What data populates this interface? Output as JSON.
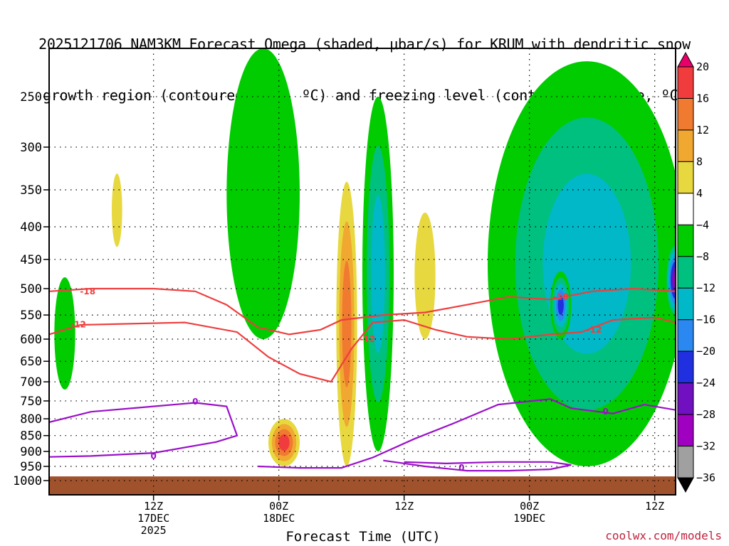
{
  "title_line1": "2025121706 NAM3KM Forecast Omega (shaded, μbar/s) for KRUM with dendritic snow",
  "title_line2": "growth region (contoured, red, ºC) and freezing level (contoured, purple, ºC)",
  "xlabel": "Forecast Time (UTC)",
  "credit": "coolwx.com/models",
  "chart_data": {
    "type": "heatmap",
    "y_axis": {
      "label": "",
      "unit": "hPa",
      "ticks": [
        250,
        300,
        350,
        400,
        450,
        500,
        550,
        600,
        650,
        700,
        750,
        800,
        850,
        900,
        950,
        1000
      ],
      "range": [
        210,
        1000
      ],
      "scale": "log-pressure",
      "grid": true
    },
    "x_axis": {
      "label": "Forecast Time (UTC)",
      "range_hours": [
        -10,
        50
      ],
      "ticks": [
        {
          "hour": 0,
          "lines": [
            "12Z",
            "17DEC",
            "2025"
          ]
        },
        {
          "hour": 12,
          "lines": [
            "00Z",
            "18DEC"
          ]
        },
        {
          "hour": 24,
          "lines": [
            "12Z"
          ]
        },
        {
          "hour": 36,
          "lines": [
            "00Z",
            "19DEC"
          ]
        },
        {
          "hour": 48,
          "lines": [
            "12Z"
          ]
        }
      ]
    },
    "colorbar": {
      "labels": [
        "20",
        "16",
        "12",
        "8",
        "4",
        "−4",
        "−8",
        "−12",
        "−16",
        "−20",
        "−24",
        "−28",
        "−32",
        "−36"
      ],
      "colors": [
        "#e8006a",
        "#f03c3c",
        "#f07a30",
        "#f0a830",
        "#e8d840",
        "#ffffff",
        "#00cc00",
        "#00c080",
        "#00b8c8",
        "#2a88f0",
        "#2030e0",
        "#7010c0",
        "#a000c0",
        "#a0a0a0",
        "#000000"
      ]
    },
    "contours": [
      {
        "label": "-18",
        "color": "#ee3e3e",
        "level_C": -18
      },
      {
        "label": "-12",
        "color": "#ee3e3e",
        "level_C": -12
      },
      {
        "label": "0",
        "color": "#9a10c8",
        "level_C": 0
      }
    ],
    "omega_regions": [
      {
        "name": "early-snow-column-west",
        "hours": [
          -9.5,
          -7.5
        ],
        "p": [
          480,
          720
        ],
        "value": -6
      },
      {
        "name": "weak-lift-12z-17dec",
        "hours": [
          -4,
          -3
        ],
        "p": [
          330,
          430
        ],
        "value": 6
      },
      {
        "name": "lift-columns-18dec",
        "hours": [
          7,
          14
        ],
        "p": [
          210,
          600
        ],
        "value": -7
      },
      {
        "name": "sink-core-18dec",
        "hours": [
          11,
          14
        ],
        "p": [
          800,
          950
        ],
        "value": 18
      },
      {
        "name": "narrow-sink-column",
        "hours": [
          17.5,
          19.5
        ],
        "p": [
          340,
          950
        ],
        "value": 12
      },
      {
        "name": "lift-shaft-20z",
        "hours": [
          20,
          23
        ],
        "p": [
          250,
          900
        ],
        "value": -14
      },
      {
        "name": "weak-sink-near-06z",
        "hours": [
          25,
          27
        ],
        "p": [
          380,
          600
        ],
        "value": 5
      },
      {
        "name": "broad-lift-19dec",
        "hours": [
          32,
          51
        ],
        "p": [
          220,
          950
        ],
        "value": -12
      },
      {
        "name": "strong-lift-core-03z",
        "hours": [
          38,
          40
        ],
        "p": [
          470,
          600
        ],
        "value": -20
      },
      {
        "name": "deep-lift-core-15z",
        "hours": [
          49,
          51
        ],
        "p": [
          420,
          560
        ],
        "value": -28
      }
    ]
  }
}
